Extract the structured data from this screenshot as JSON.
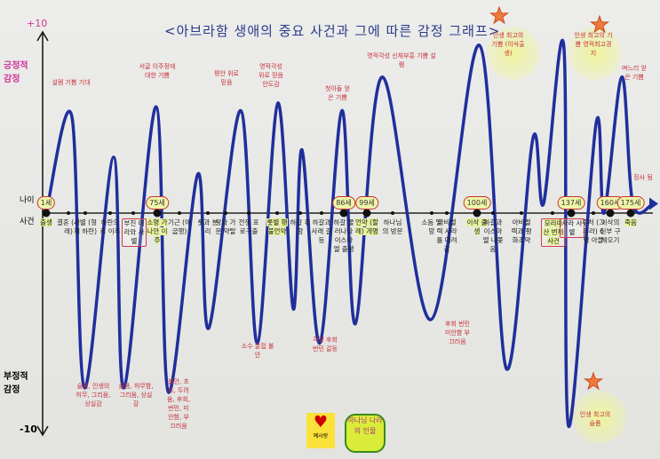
{
  "chart_data": {
    "type": "line",
    "title": "<아브라함 생애의 중요 사건과 그에 따른 감정 그래프>",
    "y_axis": {
      "top_label": "+10",
      "bottom_label": "-10",
      "positive_label": "긍정적 감정",
      "negative_label": "부정적 감정",
      "ylim": [
        -10,
        10
      ]
    },
    "row_labels": {
      "age": "나이",
      "event": "사건"
    },
    "line_color": "#1f2f9c",
    "events": [
      {
        "label": "출생",
        "age": "1세",
        "hl": true
      },
      {
        "label": "결혼 (사래)"
      },
      {
        "label": "사별 (형제 하란)"
      },
      {
        "label": "하란으로 이주"
      },
      {
        "label": "부친 데라와 사별",
        "boxed": true
      },
      {
        "label": "소명 가나안 이주",
        "age": "75세",
        "hl": true
      },
      {
        "label": "기근 (애굽행)"
      },
      {
        "label": "롯과 분리"
      },
      {
        "label": "왕과 가문 약탈"
      },
      {
        "label": "전쟁 포로구출"
      },
      {
        "label": "롯별 횃불언약",
        "hl": true
      },
      {
        "label": "하갈 취함"
      },
      {
        "label": "하갈과 사래 갈등"
      },
      {
        "label": "하갈 물러나다 이스마엘 출생",
        "age": "86세"
      },
      {
        "label": "언약 (할례) 개명",
        "age": "99세",
        "hl": true
      },
      {
        "label": "하나님의 방문"
      },
      {
        "label": "소돔 멸망"
      },
      {
        "label": "아비멜렉 사라를 데려감"
      },
      {
        "label": "이삭 출생",
        "age": "100세",
        "hl": true
      },
      {
        "label": "하갈과 이스마엘 내쫓음"
      },
      {
        "label": "아비멜렉과 평화조약"
      },
      {
        "label": "모리아산 번제사건",
        "boxed": true,
        "hl": true
      },
      {
        "label": "사라 사별",
        "age": "137세",
        "boxed": true
      },
      {
        "label": "후처 (그두라) 6명 아들"
      },
      {
        "label": "이삭의 신부 구해오기",
        "age": "160세"
      },
      {
        "label": "죽음",
        "age": "175세",
        "hl": true
      }
    ],
    "curve": [
      [
        0,
        0
      ],
      [
        1.2,
        5.2
      ],
      [
        1.95,
        -8.2
      ],
      [
        3.15,
        3
      ],
      [
        3.6,
        -8.2
      ],
      [
        4.95,
        5.7
      ],
      [
        5.5,
        -8.4
      ],
      [
        6.65,
        2.1
      ],
      [
        7.05,
        -5.4
      ],
      [
        8.65,
        5.5
      ],
      [
        9.3,
        -6.1
      ],
      [
        10.03,
        5.9
      ],
      [
        10.7,
        -4.5
      ],
      [
        11.08,
        3.4
      ],
      [
        11.92,
        -6.1
      ],
      [
        12.92,
        5.5
      ],
      [
        13.5,
        -5.2
      ],
      [
        14.6,
        7.3
      ],
      [
        15.98,
        -5
      ],
      [
        18.15,
        9
      ],
      [
        19.47,
        -7.3
      ],
      [
        20.37,
        4
      ],
      [
        20.71,
        0.5
      ],
      [
        21.6,
        9
      ],
      [
        21.86,
        -10
      ],
      [
        23.16,
        4.8
      ],
      [
        23.63,
        0
      ],
      [
        24.57,
        7.3
      ],
      [
        25.1,
        0.5
      ],
      [
        26,
        0.5
      ]
    ],
    "annotations": {
      "a1": "설렘 기쁨 기대",
      "a2": "서글 이주정에 대한 기쁨",
      "a3": "평안 위로 믿음",
      "a4": "영적각성 위로 믿음 안도감",
      "a5": "첫아들 얻은 기쁨",
      "a6": "영적각성 신체부흥 기쁨 설렘",
      "a7": "인생 최고의 기쁨 (이삭출생)",
      "a8": "인생 최고의 기쁨 영적최고경지",
      "a9": "며느리 얻은 기쁨",
      "a10": "장사 됨",
      "n1": "슬픔, 인생의 허무, 그리움, 상실감",
      "n2": "슬픔, 허무함, 그리움, 상실감",
      "n3": "불안, 초조, 두려움, 후회, 번민, 미안함, 부끄러움",
      "n4": "소수 굴접 불안",
      "n5": "걱정 후회 번민 갈등",
      "n6": "후회 번민 미안함 부끄러움",
      "n7": "인생 최고의 슬픔"
    }
  },
  "logos": {
    "left": "예사랑",
    "right": "하나님 나라의 인물"
  }
}
